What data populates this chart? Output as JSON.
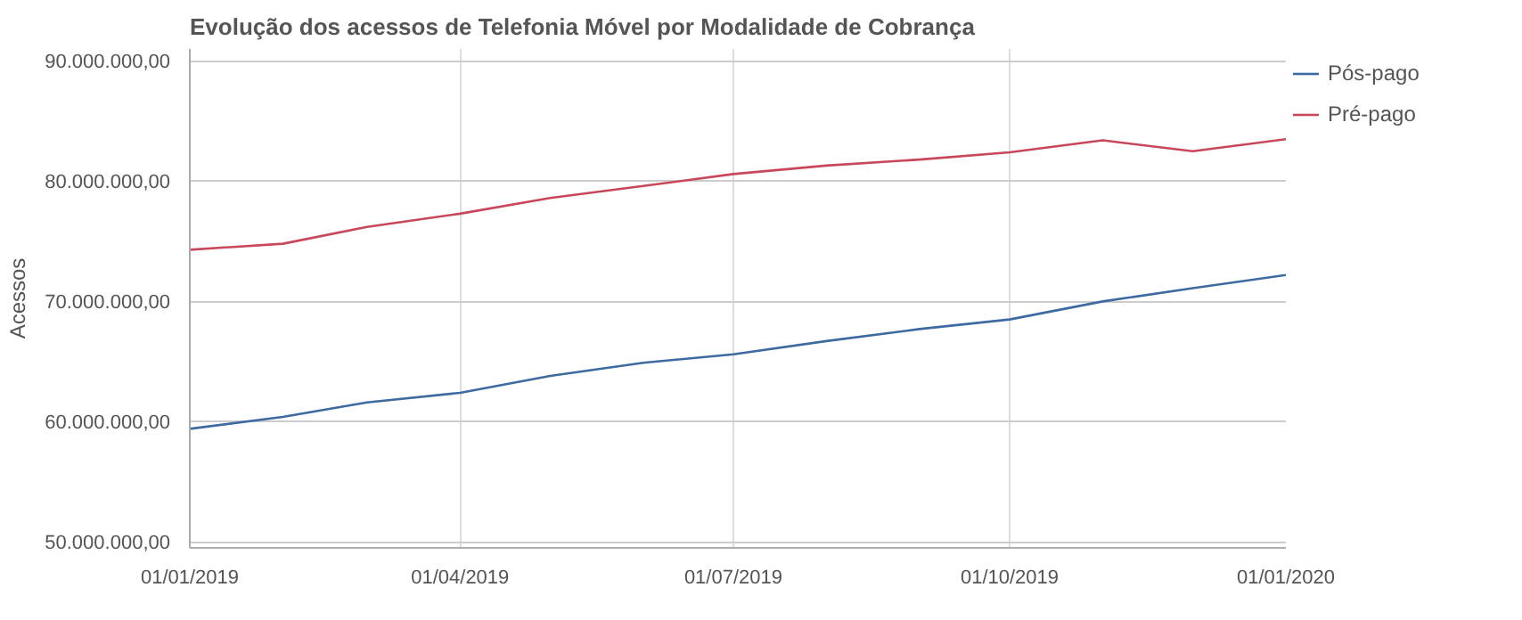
{
  "chart_data": {
    "type": "line",
    "title": "Evolução dos acessos de Telefonia Móvel por Modalidade de Cobrança",
    "ylabel": "Acessos",
    "x": [
      "2019-01-01",
      "2019-02-01",
      "2019-03-01",
      "2019-04-01",
      "2019-05-01",
      "2019-06-01",
      "2019-07-01",
      "2019-08-01",
      "2019-09-01",
      "2019-10-01",
      "2019-11-01",
      "2019-12-01",
      "2020-01-01"
    ],
    "series": [
      {
        "name": "Pós-pago",
        "color": "#3d6aa0",
        "values": [
          59400000,
          60400000,
          61600000,
          62400000,
          63800000,
          64900000,
          65600000,
          66700000,
          67700000,
          68500000,
          70000000,
          71100000,
          72200000
        ]
      },
      {
        "name": "Pré-pago",
        "color": "#c8475a",
        "values": [
          74300000,
          74800000,
          76200000,
          77300000,
          78600000,
          79600000,
          80600000,
          81300000,
          81800000,
          82400000,
          83400000,
          82500000,
          83500000
        ]
      }
    ],
    "xlim": [
      "2019-01-01",
      "2020-01-01"
    ],
    "xticks": [
      {
        "value": "2019-01-01",
        "label": "01/01/2019"
      },
      {
        "value": "2019-04-01",
        "label": "01/04/2019"
      },
      {
        "value": "2019-07-01",
        "label": "01/07/2019"
      },
      {
        "value": "2019-10-01",
        "label": "01/10/2019"
      },
      {
        "value": "2020-01-01",
        "label": "01/01/2020"
      }
    ],
    "ylim": [
      49500000,
      91000000
    ],
    "yticks": [
      {
        "value": 50000000,
        "label": "50.000.000,00"
      },
      {
        "value": 60000000,
        "label": "60.000.000,00"
      },
      {
        "value": 70000000,
        "label": "70.000.000,00"
      },
      {
        "value": 80000000,
        "label": "80.000.000,00"
      },
      {
        "value": 90000000,
        "label": "90.000.000,00"
      }
    ],
    "grid": true,
    "legend": "right",
    "marker": "none",
    "line_style": "solid"
  }
}
